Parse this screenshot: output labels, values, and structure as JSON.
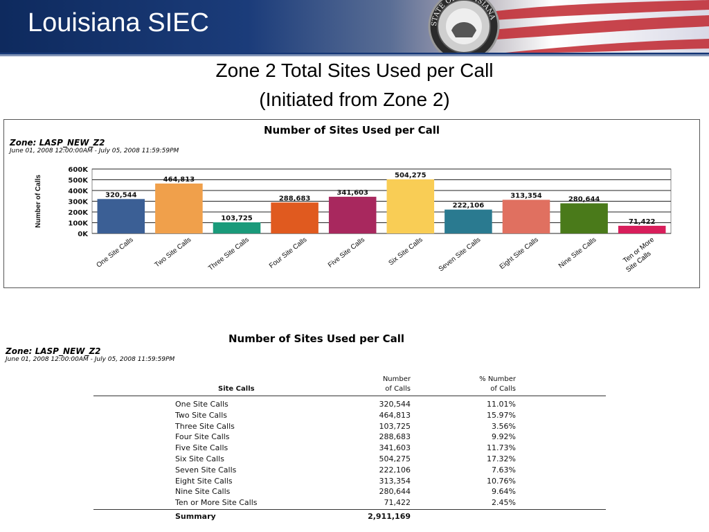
{
  "header": {
    "title": "Louisiana SIEC",
    "seal_text": "STATE OF LOUISIANA",
    "colors": {
      "banner": "#0e2a5e",
      "stripe_red": "#c0262e"
    }
  },
  "slide": {
    "title_line1": "Zone 2 Total Sites Used per Call",
    "title_line2": "(Initiated from Zone 2)"
  },
  "chart_data": {
    "type": "bar",
    "title": "Number of Sites Used per Call",
    "zone": "Zone: LASP_NEW_Z2",
    "date_range": "June 01, 2008 12:00:00AM - July 05, 2008 11:59:59PM",
    "ylabel": "Number of Calls",
    "xlabel": "",
    "ylim": [
      0,
      600000
    ],
    "yticks": [
      "0K",
      "100K",
      "200K",
      "300K",
      "400K",
      "500K",
      "600K"
    ],
    "grid": true,
    "categories": [
      "One Site Calls",
      "Two Site Calls",
      "Three Site Calls",
      "Four Site Calls",
      "Five Site Calls",
      "Six Site Calls",
      "Seven Site Calls",
      "Eight Site Calls",
      "Nine Site Calls",
      "Ten or More Site Calls"
    ],
    "values": [
      320544,
      464813,
      103725,
      288683,
      341603,
      504275,
      222106,
      313354,
      280644,
      71422
    ],
    "value_labels": [
      "320,544",
      "464,813",
      "103,725",
      "288,683",
      "341,603",
      "504,275",
      "222,106",
      "313,354",
      "280,644",
      "71,422"
    ],
    "colors": [
      "#3b5f95",
      "#f0a04b",
      "#1a9a7a",
      "#e05a1f",
      "#a8285e",
      "#f9cd55",
      "#2a7a90",
      "#e07060",
      "#4a7a1a",
      "#d81e5b"
    ]
  },
  "table": {
    "title": "Number of Sites Used per Call",
    "zone": "Zone: LASP_NEW_Z2",
    "date_range": "June 01, 2008 12:00:00AM - July 05, 2008 11:59:59PM",
    "headers": {
      "site_calls": "Site Calls",
      "number_line1": "Number",
      "number_line2": "of Calls",
      "pct_line1": "% Number",
      "pct_line2": "of Calls"
    },
    "rows": [
      {
        "label": "One Site Calls",
        "number": "320,544",
        "pct": "11.01%"
      },
      {
        "label": "Two Site Calls",
        "number": "464,813",
        "pct": "15.97%"
      },
      {
        "label": "Three Site Calls",
        "number": "103,725",
        "pct": "3.56%"
      },
      {
        "label": "Four Site Calls",
        "number": "288,683",
        "pct": "9.92%"
      },
      {
        "label": "Five Site Calls",
        "number": "341,603",
        "pct": "11.73%"
      },
      {
        "label": "Six Site Calls",
        "number": "504,275",
        "pct": "17.32%"
      },
      {
        "label": "Seven Site Calls",
        "number": "222,106",
        "pct": "7.63%"
      },
      {
        "label": "Eight Site Calls",
        "number": "313,354",
        "pct": "10.76%"
      },
      {
        "label": "Nine Site Calls",
        "number": "280,644",
        "pct": "9.64%"
      },
      {
        "label": "Ten or More Site Calls",
        "number": "71,422",
        "pct": "2.45%"
      }
    ],
    "summary": {
      "label": "Summary",
      "number": "2,911,169"
    }
  }
}
